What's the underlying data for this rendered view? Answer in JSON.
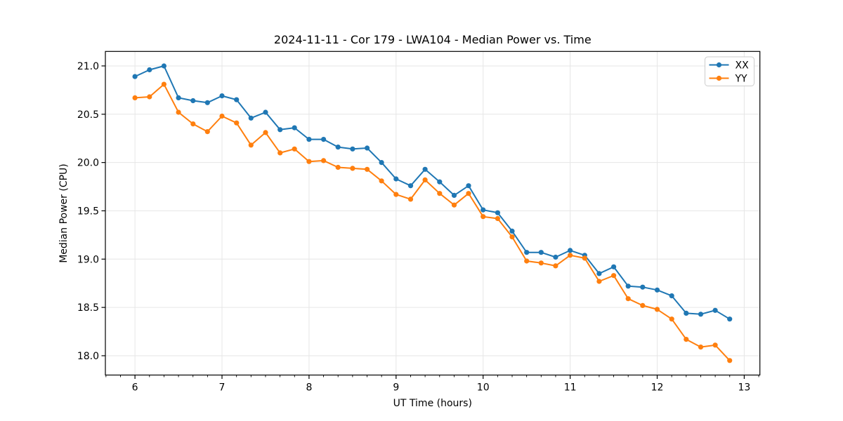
{
  "figure": {
    "background": "#ffffff"
  },
  "chart_data": {
    "type": "line",
    "title": "2024-11-11 - Cor 179 - LWA104 - Median Power vs. Time",
    "xlabel": "UT Time (hours)",
    "ylabel": "Median Power (CPU)",
    "xlim": [
      5.66,
      13.18
    ],
    "ylim": [
      17.8,
      21.15
    ],
    "xticks": [
      6,
      7,
      8,
      9,
      10,
      11,
      12,
      13
    ],
    "yticks": [
      18.0,
      18.5,
      19.0,
      19.5,
      20.0,
      20.5,
      21.0
    ],
    "x_minor_tick_step": 0.166667,
    "grid": true,
    "legend_position": "upper right",
    "legend_entries": [
      "XX",
      "YY"
    ],
    "x": [
      6.0,
      6.167,
      6.333,
      6.5,
      6.667,
      6.833,
      7.0,
      7.167,
      7.333,
      7.5,
      7.667,
      7.833,
      8.0,
      8.167,
      8.333,
      8.5,
      8.667,
      8.833,
      9.0,
      9.167,
      9.333,
      9.5,
      9.667,
      9.833,
      10.0,
      10.167,
      10.333,
      10.5,
      10.667,
      10.833,
      11.0,
      11.167,
      11.333,
      11.5,
      11.667,
      11.833,
      12.0,
      12.167,
      12.333,
      12.5,
      12.667,
      12.833
    ],
    "series": [
      {
        "name": "XX",
        "color": "#1f77b4",
        "values": [
          20.89,
          20.96,
          21.0,
          20.67,
          20.64,
          20.62,
          20.69,
          20.65,
          20.46,
          20.52,
          20.34,
          20.36,
          20.24,
          20.24,
          20.16,
          20.14,
          20.15,
          20.0,
          19.83,
          19.76,
          19.93,
          19.8,
          19.66,
          19.76,
          19.51,
          19.48,
          19.29,
          19.07,
          19.07,
          19.02,
          19.09,
          19.04,
          18.85,
          18.92,
          18.72,
          18.71,
          18.68,
          18.62,
          18.44,
          18.43,
          18.47,
          18.38
        ]
      },
      {
        "name": "YY",
        "color": "#ff7f0e",
        "values": [
          20.67,
          20.68,
          20.81,
          20.52,
          20.4,
          20.32,
          20.48,
          20.41,
          20.18,
          20.31,
          20.1,
          20.14,
          20.01,
          20.02,
          19.95,
          19.94,
          19.93,
          19.81,
          19.67,
          19.62,
          19.82,
          19.68,
          19.56,
          19.68,
          19.44,
          19.42,
          19.23,
          18.98,
          18.96,
          18.93,
          19.04,
          19.01,
          18.77,
          18.83,
          18.59,
          18.52,
          18.48,
          18.38,
          18.17,
          18.09,
          18.11,
          17.95
        ]
      }
    ]
  },
  "style": {
    "grid_color": "#e6e6e6",
    "spine_color": "#000000",
    "tick_color": "#000000",
    "legend_border_color": "#cccccc",
    "legend_background": "#ffffff",
    "marker_radius": 3.6,
    "line_width": 2
  }
}
